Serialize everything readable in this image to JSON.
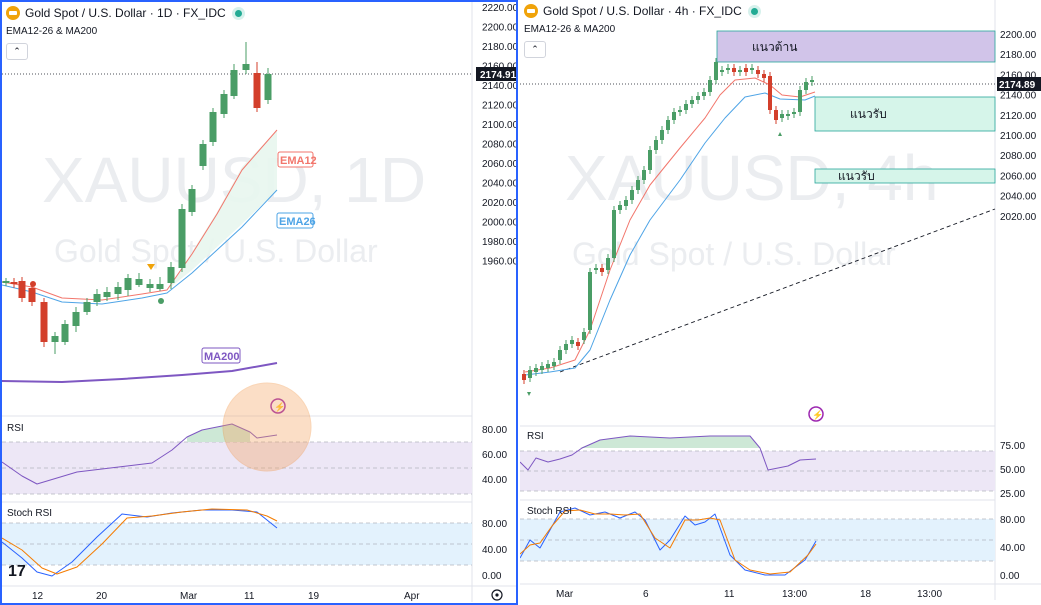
{
  "colors": {
    "up": "#4a9d66",
    "down": "#d33f2b",
    "ema12": "#f2766c",
    "ema26": "#4ea4e6",
    "ma200": "#7e57c2",
    "rsi": "#7e57c2",
    "stoch_k": "#2962ff",
    "stoch_d": "#f57c00",
    "resistance": "#d1c4e9",
    "support": "#d6f5ea",
    "zone_border": "#26a69a",
    "rsi_band": "#ede7f6",
    "stoch_band": "#e3f2fd",
    "watermark": "#ebedf0"
  },
  "left_chart": {
    "header": {
      "title": "Gold Spot / U.S. Dollar · 1D · FX_IDC"
    },
    "indicator_label": "EMA12-26 & MA200",
    "collapse_glyph": "⌃",
    "watermark": {
      "symbol": "XAUUSD, 1D",
      "name": "Gold Spot / U.S. Dollar"
    },
    "price_axis": [
      "2220.00",
      "2200.00",
      "2180.00",
      "2160.00",
      "2140.00",
      "2120.00",
      "2100.00",
      "2080.00",
      "2060.00",
      "2040.00",
      "2020.00",
      "2000.00",
      "1980.00",
      "1960.00"
    ],
    "last_price": "2174.91",
    "labels": {
      "ema12": "EMA12",
      "ema26": "EMA26",
      "ma200": "MA200"
    },
    "rsi_pane": {
      "label": "RSI",
      "axis": [
        "80.00",
        "60.00",
        "40.00"
      ]
    },
    "stoch_pane": {
      "label": "Stoch RSI",
      "axis": [
        "80.00",
        "40.00",
        "0.00"
      ]
    },
    "time_axis": [
      "12",
      "20",
      "Mar",
      "11",
      "19",
      "Apr"
    ],
    "tv_logo": "17"
  },
  "right_chart": {
    "header": {
      "title": "Gold Spot / U.S. Dollar · 4h · FX_IDC"
    },
    "indicator_label": "EMA12-26 & MA200",
    "collapse_glyph": "⌃",
    "watermark": {
      "symbol": "XAUUSD, 4h",
      "name": "Gold Spot / U.S. Dollar"
    },
    "price_axis": [
      "2200.00",
      "2180.00",
      "2160.00",
      "2140.00",
      "2120.00",
      "2100.00",
      "2080.00",
      "2060.00",
      "2040.00",
      "2020.00"
    ],
    "last_price": "2174.89",
    "zones": {
      "resistance": "แนวต้าน",
      "support1": "แนวรับ",
      "support2": "แนวรับ"
    },
    "rsi_pane": {
      "label": "RSI",
      "axis": [
        "75.00",
        "50.00",
        "25.00"
      ]
    },
    "stoch_pane": {
      "label": "Stoch RSI",
      "axis": [
        "80.00",
        "40.00",
        "0.00"
      ]
    },
    "time_axis": [
      "Mar",
      "6",
      "11",
      "13:00",
      "18",
      "13:00"
    ]
  }
}
